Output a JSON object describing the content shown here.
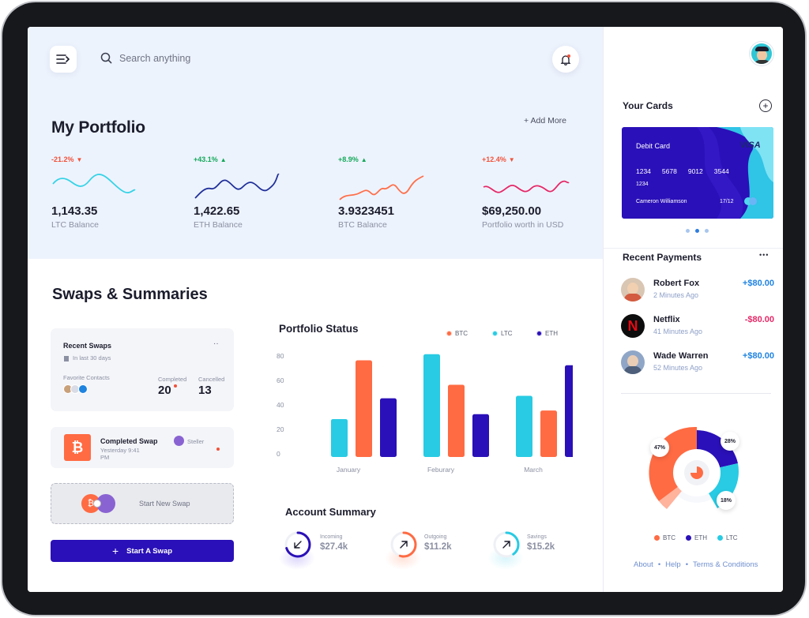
{
  "search": {
    "placeholder": "Search anything"
  },
  "portfolio": {
    "title": "My Portfolio",
    "add_more": "+ Add More",
    "stats": [
      {
        "change": "-21.2%",
        "direction": "down",
        "value": "1,143.35",
        "label": "LTC Balance",
        "color": "#35d3e6",
        "change_color": "#f0523a"
      },
      {
        "change": "+43.1%",
        "direction": "up",
        "value": "1,422.65",
        "label": "ETH Balance",
        "color": "#20309a",
        "change_color": "#13a85a"
      },
      {
        "change": "+8.9%",
        "direction": "up",
        "value": "3.9323451",
        "label": "BTC Balance",
        "color": "#ff6f4a",
        "change_color": "#13a85a"
      },
      {
        "change": "+12.4%",
        "direction": "down",
        "value": "$69,250.00",
        "label": "Portfolio worth in USD",
        "color": "#e52867",
        "change_color": "#f0523a"
      }
    ]
  },
  "swaps": {
    "title": "Swaps & Summaries",
    "recent": {
      "title": "Recent Swaps",
      "more": "··",
      "period": "In last 30 days",
      "favorite_label": "Favorite Contacts",
      "completed_label": "Completed",
      "completed_value": "20",
      "cancelled_label": "Cancelled",
      "cancelled_value": "13"
    },
    "completed": {
      "title": "Completed Swap",
      "time": "Yesterday 9:41 PM",
      "coin": "Steller"
    },
    "start_new": "Start New Swap",
    "start_button": "Start A Swap"
  },
  "portfolio_status": {
    "title": "Portfolio Status",
    "legend": [
      {
        "name": "BTC",
        "color": "#ff6b43"
      },
      {
        "name": "LTC",
        "color": "#28cbe3"
      },
      {
        "name": "ETH",
        "color": "#2a10b8"
      }
    ]
  },
  "chart_data": {
    "type": "bar",
    "categories": [
      "January",
      "Feburary",
      "March"
    ],
    "series": [
      {
        "name": "LTC",
        "color": "#28cbe3",
        "values": [
          31,
          84,
          50
        ]
      },
      {
        "name": "BTC",
        "color": "#ff6b43",
        "values": [
          79,
          59,
          38
        ]
      },
      {
        "name": "ETH",
        "color": "#2a10b8",
        "values": [
          48,
          35,
          75
        ]
      }
    ],
    "yticks": [
      "80",
      "60",
      "40",
      "20",
      "0"
    ],
    "ylim": [
      0,
      80
    ]
  },
  "account_summary": {
    "title": "Account Summary",
    "items": [
      {
        "label": "Incoming",
        "value": "$27.4k",
        "icon": "arrow-down-left-icon",
        "color": "#2a10b8",
        "progress": 0.7
      },
      {
        "label": "Outgoing",
        "value": "$11.2k",
        "icon": "arrow-up-right-icon",
        "color": "#ff6b43",
        "progress": 0.55
      },
      {
        "label": "Savings",
        "value": "$15.2k",
        "icon": "arrow-up-right-icon",
        "color": "#28cbe3",
        "progress": 0.4
      }
    ]
  },
  "cards": {
    "title": "Your Cards",
    "add": "+",
    "card_type": "Debit Card",
    "brand": "VISA",
    "number": [
      "1234",
      "5678",
      "9012",
      "3544"
    ],
    "number_line2": "1234",
    "holder": "Cameron Williamson",
    "expiry": "17/12"
  },
  "payments": {
    "title": "Recent Payments",
    "more": "•••",
    "items": [
      {
        "name": "Robert Fox",
        "time": "2 Minutes Ago",
        "amount": "+$80.00",
        "color": "#1f83e0"
      },
      {
        "name": "Netflix",
        "time": "41 Minutes Ago",
        "amount": "-$80.00",
        "color": "#e52867"
      },
      {
        "name": "Wade Warren",
        "time": "52 Minutes Ago",
        "amount": "+$80.00",
        "color": "#1f83e0"
      }
    ]
  },
  "donut": {
    "slices": [
      {
        "name": "BTC",
        "pct": "47%",
        "color": "#ff6b43"
      },
      {
        "name": "ETH",
        "pct": "28%",
        "color": "#2a10b8"
      },
      {
        "name": "LTC",
        "pct": "18%",
        "color": "#28cbe3"
      }
    ]
  },
  "footer": {
    "about": "About",
    "help": "Help",
    "terms": "Terms & Conditions",
    "sep": "•"
  }
}
